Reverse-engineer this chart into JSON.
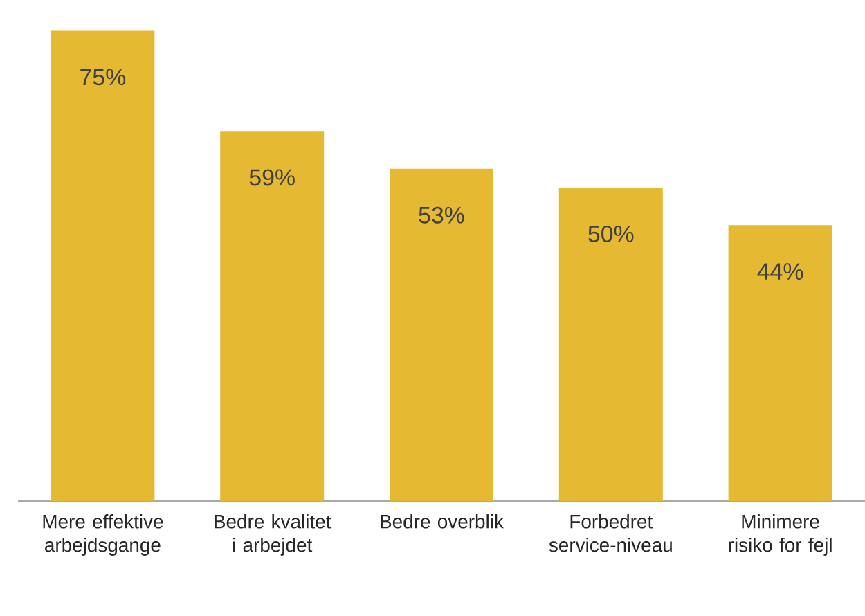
{
  "chart_data": {
    "type": "bar",
    "categories": [
      "Mere effektive arbejdsgange",
      "Bedre kvalitet i arbejdet",
      "Bedre overblik",
      "Forbedret service-niveau",
      "Minimere risiko for fejl"
    ],
    "values": [
      75,
      59,
      53,
      50,
      44
    ],
    "value_labels": [
      "75%",
      "59%",
      "53%",
      "50%",
      "44%"
    ],
    "color": "#e6b932"
  }
}
